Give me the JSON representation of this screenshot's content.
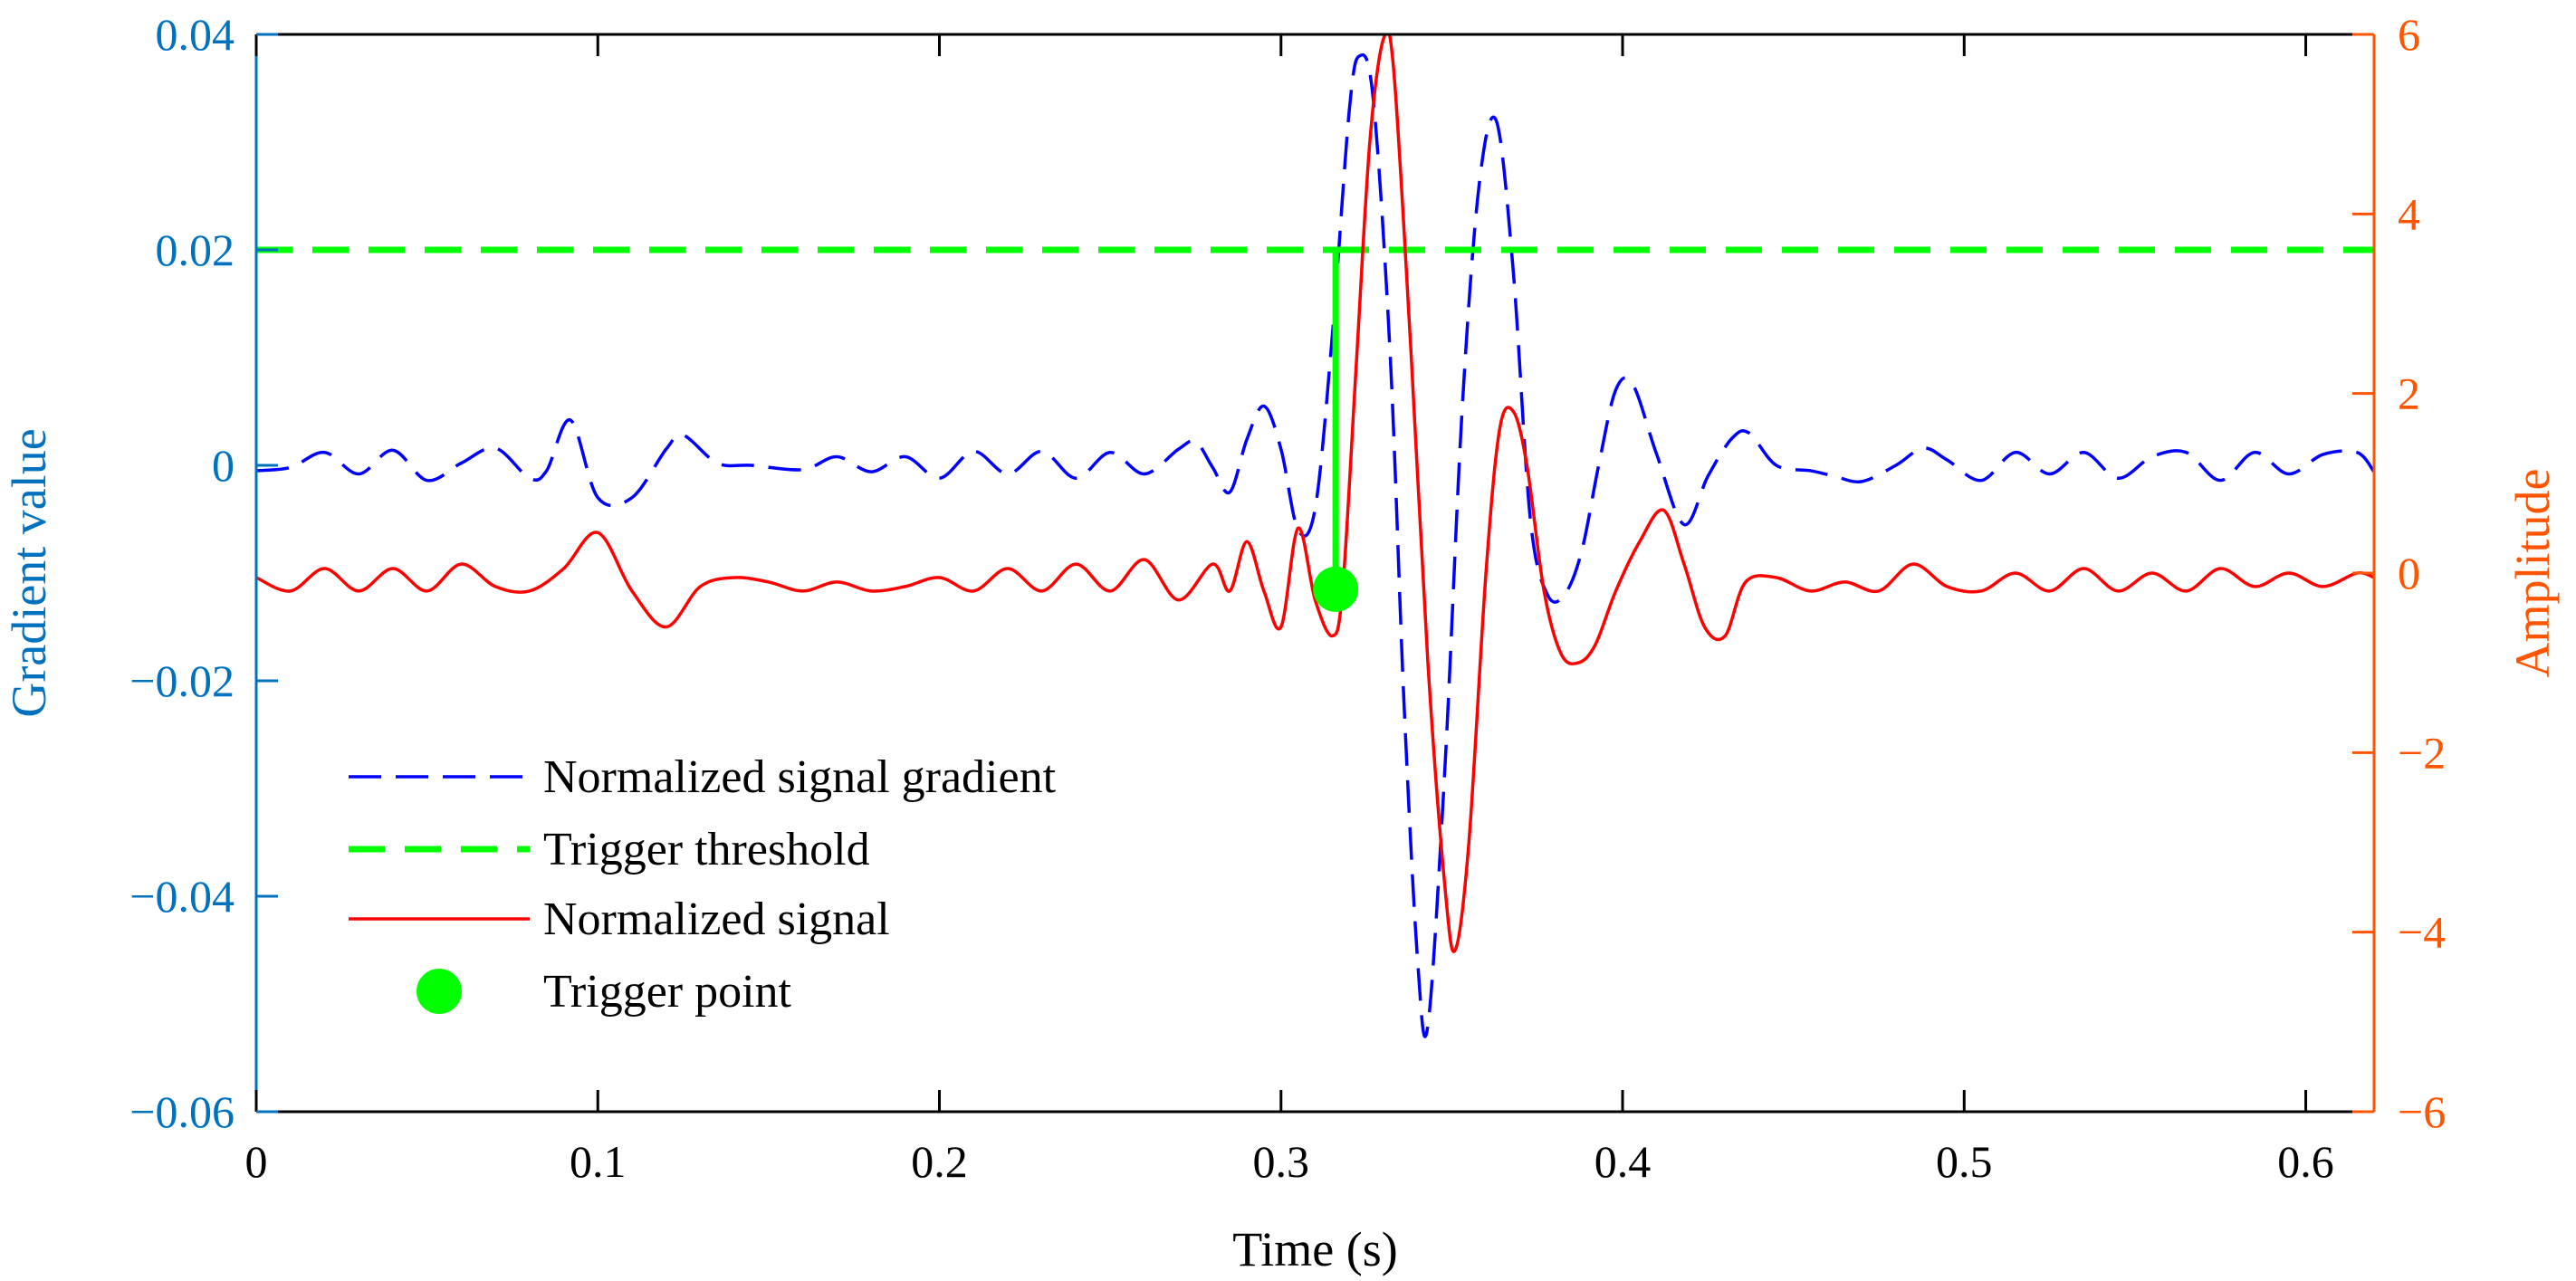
{
  "chart_data": {
    "type": "line",
    "xlabel": "Time (s)",
    "xlim": [
      0,
      0.62
    ],
    "xticks": [
      0,
      0.1,
      0.2,
      0.3,
      0.4,
      0.5,
      0.6
    ],
    "xtick_labels": [
      "0",
      "0.1",
      "0.2",
      "0.3",
      "0.4",
      "0.5",
      "0.6"
    ],
    "left_axis": {
      "label": "Gradient value",
      "color": "#0072BD",
      "ylim": [
        -0.06,
        0.04
      ],
      "ticks": [
        -0.06,
        -0.04,
        -0.02,
        0,
        0.02,
        0.04
      ],
      "tick_labels": [
        "−0.06",
        "−0.04",
        "−0.02",
        "0",
        "0.02",
        "0.04"
      ]
    },
    "right_axis": {
      "label": "Amplitude",
      "color": "#FF5500",
      "ylim": [
        -6,
        6
      ],
      "ticks": [
        -6,
        -4,
        -2,
        0,
        2,
        4,
        6
      ],
      "tick_labels": [
        "−6",
        "−4",
        "−2",
        "0",
        "2",
        "4",
        "6"
      ]
    },
    "legend_position": "lower-left",
    "series": [
      {
        "name": "Normalized signal gradient",
        "axis": "left",
        "style": "dashed",
        "color": "#0000FF",
        "x": [
          0,
          0.01,
          0.02,
          0.03,
          0.04,
          0.05,
          0.06,
          0.07,
          0.08,
          0.085,
          0.092,
          0.1,
          0.11,
          0.12,
          0.125,
          0.135,
          0.145,
          0.16,
          0.17,
          0.18,
          0.19,
          0.2,
          0.21,
          0.22,
          0.23,
          0.24,
          0.25,
          0.26,
          0.27,
          0.275,
          0.28,
          0.285,
          0.29,
          0.295,
          0.3,
          0.305,
          0.31,
          0.315,
          0.32,
          0.323,
          0.327,
          0.332,
          0.336,
          0.34,
          0.343,
          0.348,
          0.353,
          0.358,
          0.363,
          0.368,
          0.373,
          0.378,
          0.383,
          0.388,
          0.393,
          0.398,
          0.403,
          0.41,
          0.418,
          0.425,
          0.432,
          0.437,
          0.445,
          0.455,
          0.462,
          0.47,
          0.48,
          0.488,
          0.495,
          0.505,
          0.515,
          0.525,
          0.535,
          0.545,
          0.555,
          0.565,
          0.575,
          0.585,
          0.595,
          0.605,
          0.615,
          0.62
        ],
        "y": [
          -0.0005,
          -0.0002,
          0.0012,
          -0.0008,
          0.0014,
          -0.0014,
          0.0002,
          0.0016,
          -0.0012,
          -0.0005,
          0.0042,
          -0.003,
          -0.003,
          0.0015,
          0.0028,
          0.0002,
          0.0,
          -0.0004,
          0.0008,
          -0.0006,
          0.0008,
          -0.0012,
          0.0013,
          -0.0008,
          0.0013,
          -0.0012,
          0.0012,
          -0.0008,
          0.0015,
          0.0022,
          -0.0002,
          -0.0025,
          0.0024,
          0.0055,
          0.0015,
          -0.006,
          -0.004,
          0.012,
          0.033,
          0.038,
          0.034,
          0.01,
          -0.022,
          -0.046,
          -0.052,
          -0.028,
          0.005,
          0.026,
          0.032,
          0.018,
          -0.005,
          -0.012,
          -0.012,
          -0.008,
          0.0,
          0.007,
          0.0075,
          0.001,
          -0.0055,
          -0.001,
          0.0025,
          0.003,
          0.0,
          -0.0005,
          -0.001,
          -0.0015,
          0.0,
          0.0016,
          0.0005,
          -0.0014,
          0.0012,
          -0.0008,
          0.0012,
          -0.0012,
          0.0008,
          0.0012,
          -0.0014,
          0.0012,
          -0.0008,
          0.001,
          0.0012,
          -0.0006
        ]
      },
      {
        "name": "Trigger threshold",
        "axis": "left",
        "style": "dashed-thick",
        "color": "#00FF00",
        "x": [
          0,
          0.316,
          0.316,
          0.316,
          0.62
        ],
        "y": [
          0.02,
          0.02,
          -0.0108,
          0.02,
          0.02
        ]
      },
      {
        "name": "Normalized signal",
        "axis": "right",
        "style": "solid",
        "color": "#FF0000",
        "x": [
          0,
          0.01,
          0.02,
          0.03,
          0.04,
          0.05,
          0.06,
          0.07,
          0.08,
          0.09,
          0.1,
          0.11,
          0.12,
          0.13,
          0.14,
          0.15,
          0.16,
          0.17,
          0.18,
          0.19,
          0.2,
          0.21,
          0.22,
          0.23,
          0.24,
          0.25,
          0.26,
          0.27,
          0.28,
          0.285,
          0.29,
          0.295,
          0.3,
          0.305,
          0.31,
          0.315,
          0.318,
          0.322,
          0.326,
          0.33,
          0.333,
          0.338,
          0.343,
          0.348,
          0.351,
          0.355,
          0.36,
          0.364,
          0.368,
          0.372,
          0.377,
          0.382,
          0.387,
          0.392,
          0.398,
          0.405,
          0.412,
          0.418,
          0.424,
          0.43,
          0.436,
          0.445,
          0.455,
          0.465,
          0.475,
          0.485,
          0.495,
          0.505,
          0.515,
          0.525,
          0.535,
          0.545,
          0.555,
          0.565,
          0.575,
          0.585,
          0.595,
          0.605,
          0.615,
          0.62
        ],
        "y": [
          -0.05,
          -0.2,
          0.05,
          -0.2,
          0.05,
          -0.2,
          0.1,
          -0.15,
          -0.2,
          0.05,
          0.45,
          -0.2,
          -0.6,
          -0.15,
          -0.05,
          -0.1,
          -0.2,
          -0.1,
          -0.2,
          -0.15,
          -0.05,
          -0.2,
          0.05,
          -0.2,
          0.1,
          -0.2,
          0.15,
          -0.3,
          0.1,
          -0.2,
          0.35,
          -0.2,
          -0.6,
          0.5,
          -0.3,
          -0.7,
          -0.2,
          2.3,
          4.8,
          5.95,
          5.6,
          2.5,
          -1.0,
          -3.5,
          -4.2,
          -3.0,
          0.0,
          1.6,
          1.8,
          1.2,
          -0.2,
          -0.9,
          -1.0,
          -0.8,
          -0.2,
          0.35,
          0.7,
          0.1,
          -0.6,
          -0.7,
          -0.1,
          -0.05,
          -0.2,
          -0.1,
          -0.2,
          0.1,
          -0.15,
          -0.2,
          0.0,
          -0.2,
          0.05,
          -0.2,
          0.0,
          -0.2,
          0.05,
          -0.15,
          0.0,
          -0.15,
          0.0,
          -0.05
        ]
      },
      {
        "name": "Trigger point",
        "axis": "right",
        "style": "marker",
        "color": "#00FF00",
        "x": [
          0.316
        ],
        "y": [
          -0.18
        ]
      }
    ]
  }
}
